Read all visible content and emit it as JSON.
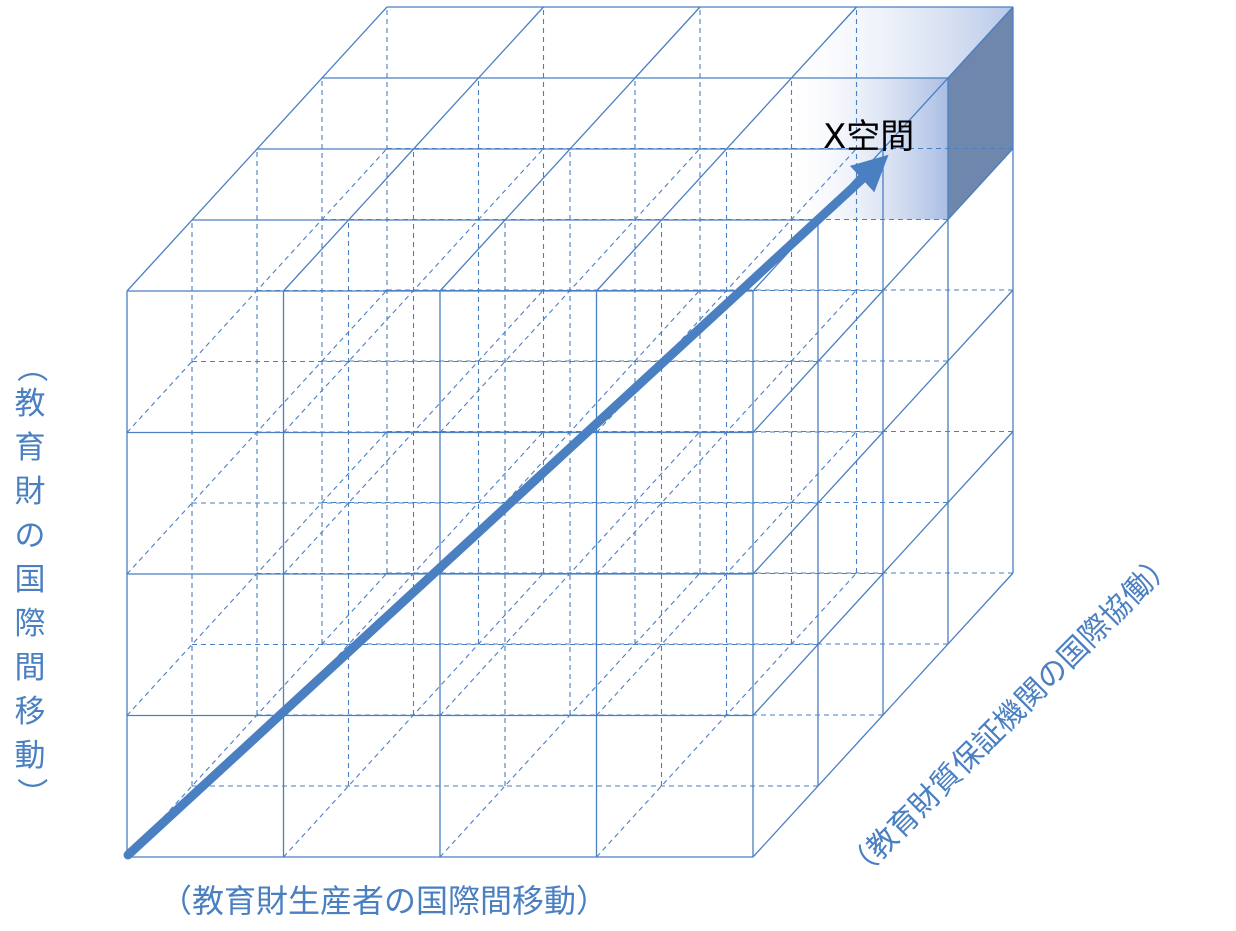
{
  "labels": {
    "space": "X空間",
    "x_axis": "（教育財生産者の国際間移動）",
    "y_axis_chars": [
      "（",
      "教",
      "育",
      "財",
      "の",
      "国",
      "際",
      "間",
      "移",
      "動",
      "）"
    ],
    "z_axis": "（教育財質保証機関の国際協働）"
  },
  "colors": {
    "grid": "#4a7fc1",
    "arrow": "#4a7fc1",
    "highlight_side": "#6f86ad",
    "label": "#4a7fc1"
  }
}
